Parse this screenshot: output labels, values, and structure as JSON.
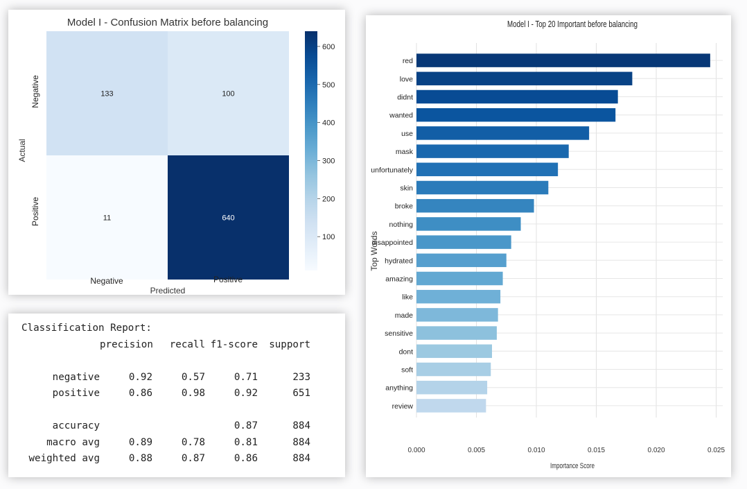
{
  "confusion_matrix": {
    "title": "Model I - Confusion Matrix before balancing",
    "xlabel": "Predicted",
    "ylabel": "Actual",
    "row_labels": [
      "Negative",
      "Positive"
    ],
    "col_labels": [
      "Negative",
      "Positive"
    ],
    "colorbar_ticks": [
      "100",
      "200",
      "300",
      "400",
      "500",
      "600"
    ]
  },
  "classification_report": {
    "title": "Classification Report:",
    "headers": [
      "precision",
      "recall",
      "f1-score",
      "support"
    ],
    "rows": [
      {
        "label": "negative",
        "precision": "0.92",
        "recall": "0.57",
        "f1": "0.71",
        "support": "233"
      },
      {
        "label": "positive",
        "precision": "0.86",
        "recall": "0.98",
        "f1": "0.92",
        "support": "651"
      },
      {
        "label": "accuracy",
        "precision": "",
        "recall": "",
        "f1": "0.87",
        "support": "884"
      },
      {
        "label": "macro avg",
        "precision": "0.89",
        "recall": "0.78",
        "f1": "0.81",
        "support": "884"
      },
      {
        "label": "weighted avg",
        "precision": "0.88",
        "recall": "0.87",
        "f1": "0.86",
        "support": "884"
      }
    ]
  },
  "chart_data": [
    {
      "type": "heatmap",
      "title": "Model I - Confusion Matrix before balancing",
      "xlabel": "Predicted",
      "ylabel": "Actual",
      "x": [
        "Negative",
        "Positive"
      ],
      "y": [
        "Negative",
        "Positive"
      ],
      "values": [
        [
          133,
          100
        ],
        [
          11,
          640
        ]
      ],
      "colormap": "Blues",
      "colorbar_range": [
        11,
        640
      ],
      "colorbar_ticks": [
        100,
        200,
        300,
        400,
        500,
        600
      ]
    },
    {
      "type": "bar",
      "orientation": "horizontal",
      "title": "Model I - Top 20 Important before balancing",
      "xlabel": "Importance Score",
      "ylabel": "Top Words",
      "categories": [
        "red",
        "love",
        "didnt",
        "wanted",
        "use",
        "mask",
        "unfortunately",
        "skin",
        "broke",
        "nothing",
        "disappointed",
        "hydrated",
        "amazing",
        "like",
        "made",
        "sensitive",
        "dont",
        "soft",
        "anything",
        "review"
      ],
      "values": [
        0.0245,
        0.018,
        0.0168,
        0.0166,
        0.0144,
        0.0127,
        0.0118,
        0.011,
        0.0098,
        0.0087,
        0.0079,
        0.0075,
        0.0072,
        0.007,
        0.0068,
        0.0067,
        0.0063,
        0.0062,
        0.0059,
        0.0058
      ],
      "xlim": [
        0,
        0.0252
      ],
      "xticks": [
        "0.000",
        "0.005",
        "0.010",
        "0.015",
        "0.020",
        "0.025"
      ],
      "grid": true,
      "colormap": "Blues (dark to light)"
    }
  ]
}
